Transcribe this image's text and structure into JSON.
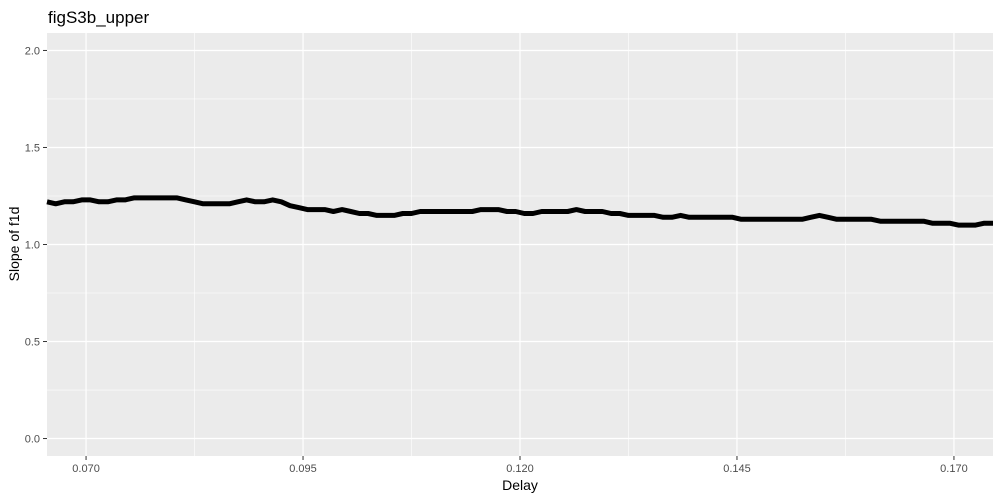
{
  "chart_data": {
    "type": "line",
    "title": "figS3b_upper",
    "xlabel": "Delay",
    "ylabel": "Slope of f1d",
    "xlim": [
      0.0655,
      0.1745
    ],
    "ylim": [
      -0.09,
      2.09
    ],
    "x_ticks": [
      0.07,
      0.095,
      0.12,
      0.145,
      0.17
    ],
    "x_tick_labels": [
      "0.070",
      "0.095",
      "0.120",
      "0.145",
      "0.170"
    ],
    "y_ticks": [
      0.0,
      0.5,
      1.0,
      1.5,
      2.0
    ],
    "y_tick_labels": [
      "0.0",
      "0.5",
      "1.0",
      "1.5",
      "2.0"
    ],
    "grid": true,
    "background": "#ebebeb",
    "grid_color": "#ffffff",
    "line_color": "#000000",
    "series": [
      {
        "x": [
          0.0655,
          0.0665,
          0.0675,
          0.0685,
          0.0695,
          0.0705,
          0.0715,
          0.0725,
          0.0735,
          0.0745,
          0.0755,
          0.0765,
          0.0775,
          0.0785,
          0.0795,
          0.0805,
          0.0815,
          0.0825,
          0.0835,
          0.0845,
          0.0855,
          0.0865,
          0.0875,
          0.0885,
          0.0895,
          0.0905,
          0.0915,
          0.0925,
          0.0935,
          0.0945,
          0.0955,
          0.0965,
          0.0975,
          0.0985,
          0.0995,
          0.1005,
          0.1015,
          0.1025,
          0.1035,
          0.1045,
          0.1055,
          0.1065,
          0.1075,
          0.1085,
          0.1095,
          0.1105,
          0.1115,
          0.1125,
          0.1135,
          0.1145,
          0.1155,
          0.1165,
          0.1175,
          0.1185,
          0.1195,
          0.1205,
          0.1215,
          0.1225,
          0.1235,
          0.1245,
          0.1255,
          0.1265,
          0.1275,
          0.1285,
          0.1295,
          0.1305,
          0.1315,
          0.1325,
          0.1335,
          0.1345,
          0.1355,
          0.1365,
          0.1375,
          0.1385,
          0.1395,
          0.1405,
          0.1415,
          0.1425,
          0.1435,
          0.1445,
          0.1455,
          0.1465,
          0.1475,
          0.1485,
          0.1495,
          0.1505,
          0.1515,
          0.1525,
          0.1535,
          0.1545,
          0.1555,
          0.1565,
          0.1575,
          0.1585,
          0.1595,
          0.1605,
          0.1615,
          0.1625,
          0.1635,
          0.1645,
          0.1655,
          0.1665,
          0.1675,
          0.1685,
          0.1695,
          0.1705,
          0.1715,
          0.1725,
          0.1735,
          0.1745
        ],
        "y": [
          1.22,
          1.21,
          1.22,
          1.22,
          1.23,
          1.23,
          1.22,
          1.22,
          1.23,
          1.23,
          1.24,
          1.24,
          1.24,
          1.24,
          1.24,
          1.24,
          1.23,
          1.22,
          1.21,
          1.21,
          1.21,
          1.21,
          1.22,
          1.23,
          1.22,
          1.22,
          1.23,
          1.22,
          1.2,
          1.19,
          1.18,
          1.18,
          1.18,
          1.17,
          1.18,
          1.17,
          1.16,
          1.16,
          1.15,
          1.15,
          1.15,
          1.16,
          1.16,
          1.17,
          1.17,
          1.17,
          1.17,
          1.17,
          1.17,
          1.17,
          1.18,
          1.18,
          1.18,
          1.17,
          1.17,
          1.16,
          1.16,
          1.17,
          1.17,
          1.17,
          1.17,
          1.18,
          1.17,
          1.17,
          1.17,
          1.16,
          1.16,
          1.15,
          1.15,
          1.15,
          1.15,
          1.14,
          1.14,
          1.15,
          1.14,
          1.14,
          1.14,
          1.14,
          1.14,
          1.14,
          1.13,
          1.13,
          1.13,
          1.13,
          1.13,
          1.13,
          1.13,
          1.13,
          1.14,
          1.15,
          1.14,
          1.13,
          1.13,
          1.13,
          1.13,
          1.13,
          1.12,
          1.12,
          1.12,
          1.12,
          1.12,
          1.12,
          1.11,
          1.11,
          1.11,
          1.1,
          1.1,
          1.1,
          1.11,
          1.11
        ]
      }
    ]
  }
}
